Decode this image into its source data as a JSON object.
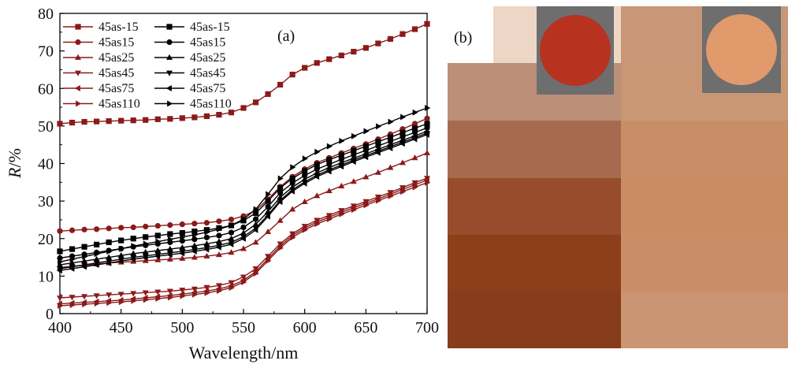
{
  "chart_data": {
    "type": "line",
    "panel_label": "(a)",
    "xlabel": "Wavelength/nm",
    "ylabel_main": "R",
    "ylabel_unit": "/%",
    "xlim": [
      400,
      700
    ],
    "ylim": [
      0,
      80
    ],
    "xticks": [
      400,
      450,
      500,
      550,
      600,
      650,
      700
    ],
    "yticks": [
      0,
      10,
      20,
      30,
      40,
      50,
      60,
      70,
      80
    ],
    "grid": false,
    "legend_position": "top-left",
    "x": [
      400,
      410,
      420,
      430,
      440,
      450,
      460,
      470,
      480,
      490,
      500,
      510,
      520,
      530,
      540,
      550,
      560,
      570,
      580,
      590,
      600,
      610,
      620,
      630,
      640,
      650,
      660,
      670,
      680,
      690,
      700
    ],
    "series": [
      {
        "name": "45as-15",
        "color": "#8B1A1A",
        "marker": "square",
        "values": [
          50.6,
          50.9,
          51.1,
          51.2,
          51.3,
          51.4,
          51.5,
          51.6,
          51.8,
          51.9,
          52.1,
          52.3,
          52.6,
          53.0,
          53.6,
          54.8,
          56.3,
          58.5,
          61.0,
          63.7,
          65.5,
          66.8,
          67.8,
          68.8,
          69.8,
          70.8,
          72.0,
          73.2,
          74.5,
          75.8,
          77.2
        ]
      },
      {
        "name": "45as15",
        "color": "#8B1A1A",
        "marker": "circle",
        "values": [
          22.0,
          22.2,
          22.4,
          22.5,
          22.7,
          22.9,
          23.0,
          23.2,
          23.4,
          23.6,
          23.8,
          24.0,
          24.2,
          24.6,
          25.1,
          26.0,
          27.5,
          30.5,
          33.8,
          36.5,
          38.5,
          40.2,
          41.5,
          42.8,
          44.0,
          45.2,
          46.5,
          47.8,
          49.2,
          50.6,
          52.0
        ]
      },
      {
        "name": "45as25",
        "color": "#8B1A1A",
        "marker": "triangle-up",
        "values": [
          12.3,
          12.6,
          12.9,
          13.2,
          13.5,
          13.7,
          13.9,
          14.1,
          14.3,
          14.5,
          14.7,
          15.0,
          15.3,
          15.7,
          16.3,
          17.3,
          19.0,
          21.8,
          24.8,
          27.8,
          29.8,
          31.4,
          32.7,
          34.0,
          35.2,
          36.4,
          37.6,
          38.9,
          40.2,
          41.5,
          42.8
        ]
      },
      {
        "name": "45as45",
        "color": "#8B1A1A",
        "marker": "triangle-down",
        "values": [
          4.2,
          4.4,
          4.6,
          4.8,
          5.0,
          5.2,
          5.4,
          5.6,
          5.8,
          6.0,
          6.3,
          6.6,
          7.0,
          7.5,
          8.3,
          9.8,
          12.0,
          15.3,
          18.6,
          21.3,
          23.3,
          24.9,
          26.2,
          27.5,
          28.7,
          29.9,
          31.1,
          32.3,
          33.6,
          34.9,
          36.1
        ]
      },
      {
        "name": "45as75",
        "color": "#8B1A1A",
        "marker": "triangle-left",
        "values": [
          2.6,
          2.8,
          3.0,
          3.2,
          3.4,
          3.6,
          3.9,
          4.2,
          4.5,
          4.8,
          5.2,
          5.6,
          6.0,
          6.6,
          7.4,
          8.9,
          11.2,
          14.6,
          18.0,
          20.8,
          22.8,
          24.4,
          25.7,
          27.0,
          28.2,
          29.4,
          30.6,
          31.8,
          33.1,
          34.3,
          35.6
        ]
      },
      {
        "name": "45as110",
        "color": "#8B1A1A",
        "marker": "triangle-right",
        "values": [
          2.1,
          2.3,
          2.5,
          2.7,
          2.9,
          3.1,
          3.4,
          3.7,
          4.0,
          4.3,
          4.7,
          5.1,
          5.5,
          6.1,
          6.9,
          8.4,
          10.7,
          14.1,
          17.5,
          20.3,
          22.3,
          23.9,
          25.2,
          26.5,
          27.7,
          28.9,
          30.1,
          31.3,
          32.5,
          33.7,
          34.9
        ]
      },
      {
        "name": "45as-15",
        "color": "#000000",
        "marker": "square",
        "values": [
          16.6,
          17.2,
          17.8,
          18.4,
          19.0,
          19.5,
          20.0,
          20.4,
          20.8,
          21.2,
          21.5,
          21.9,
          22.3,
          22.8,
          23.5,
          24.8,
          26.8,
          30.0,
          33.5,
          36.0,
          38.0,
          39.7,
          41.0,
          42.2,
          43.4,
          44.6,
          45.8,
          47.0,
          48.2,
          49.4,
          50.6
        ]
      },
      {
        "name": "45as15",
        "color": "#000000",
        "marker": "circle",
        "values": [
          14.8,
          15.3,
          15.8,
          16.3,
          16.8,
          17.3,
          17.8,
          18.2,
          18.6,
          19.0,
          19.4,
          19.8,
          20.3,
          20.8,
          21.6,
          23.0,
          25.2,
          28.5,
          32.2,
          34.8,
          36.8,
          38.5,
          39.8,
          41.1,
          42.3,
          43.5,
          44.7,
          45.9,
          47.1,
          48.3,
          49.5
        ]
      },
      {
        "name": "45as25",
        "color": "#000000",
        "marker": "triangle-up",
        "values": [
          13.0,
          13.5,
          14.0,
          14.5,
          15.0,
          15.5,
          16.0,
          16.4,
          16.8,
          17.2,
          17.6,
          18.1,
          18.6,
          19.2,
          20.0,
          21.5,
          23.8,
          27.2,
          31.0,
          33.7,
          35.8,
          37.5,
          38.9,
          40.2,
          41.4,
          42.6,
          43.8,
          45.0,
          46.2,
          47.4,
          48.6
        ]
      },
      {
        "name": "45as45",
        "color": "#000000",
        "marker": "triangle-down",
        "values": [
          12.0,
          12.5,
          13.0,
          13.5,
          14.0,
          14.5,
          15.0,
          15.4,
          15.8,
          16.2,
          16.6,
          17.1,
          17.6,
          18.2,
          19.0,
          20.5,
          22.8,
          26.3,
          30.2,
          33.0,
          35.1,
          36.9,
          38.3,
          39.6,
          40.9,
          42.1,
          43.3,
          44.5,
          45.7,
          46.9,
          48.1
        ]
      },
      {
        "name": "45as75",
        "color": "#000000",
        "marker": "triangle-left",
        "values": [
          11.5,
          12.0,
          12.5,
          13.0,
          13.5,
          14.0,
          14.5,
          14.9,
          15.3,
          15.7,
          16.1,
          16.6,
          17.1,
          17.7,
          18.5,
          20.0,
          22.3,
          25.9,
          29.8,
          32.6,
          34.7,
          36.5,
          37.9,
          39.2,
          40.5,
          41.7,
          42.9,
          44.1,
          45.3,
          46.5,
          47.7
        ]
      },
      {
        "name": "45as110",
        "color": "#000000",
        "marker": "triangle-right",
        "values": [
          13.8,
          14.5,
          15.2,
          15.9,
          16.6,
          17.3,
          18.0,
          18.6,
          19.2,
          19.8,
          20.4,
          21.0,
          21.7,
          22.5,
          23.5,
          25.2,
          27.8,
          31.8,
          36.0,
          39.0,
          41.3,
          43.1,
          44.6,
          46.0,
          47.3,
          48.6,
          49.9,
          51.1,
          52.4,
          53.6,
          54.8
        ]
      }
    ]
  },
  "panel_b": {
    "label": "(b)",
    "left_column_swatches": [
      "#edd6c6",
      "#bb8f78",
      "#a66a4e",
      "#974c2b",
      "#8d3f1a",
      "#873d1c"
    ],
    "right_column_swatches": [
      "#c89777",
      "#c99774",
      "#c88f67",
      "#c98c63",
      "#c98e67",
      "#cb9472"
    ],
    "left_sample_color": "#b83220",
    "right_sample_color": "#e19a6c",
    "photo_background": "#6e6e6e"
  }
}
